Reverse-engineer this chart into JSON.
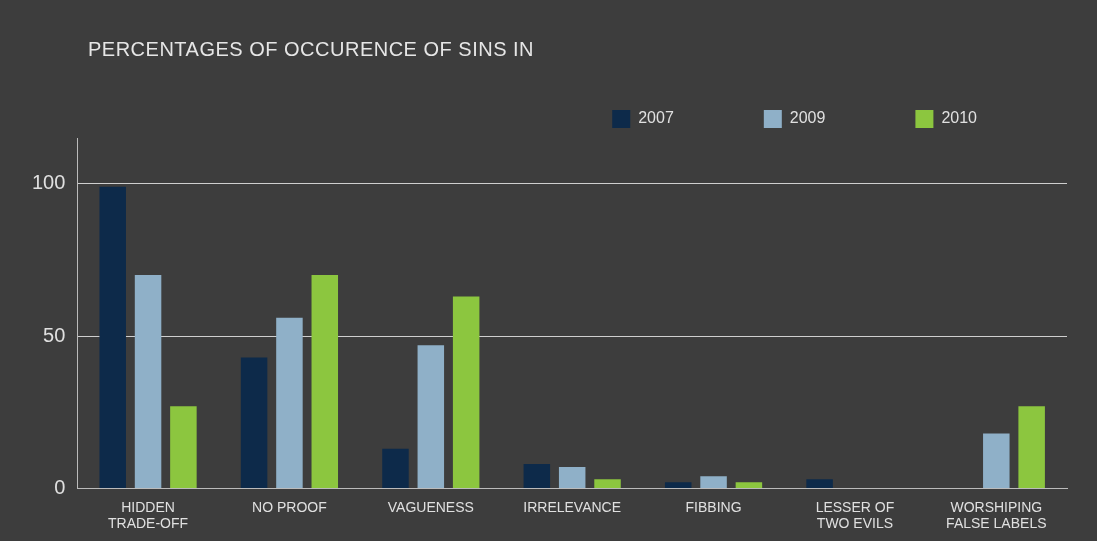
{
  "chart_data": {
    "type": "bar",
    "title": "PERCENTAGES OF OCCURENCE OF SINS IN",
    "categories": [
      "HIDDEN TRADE-OFF",
      "NO PROOF",
      "VAGUENESS",
      "IRRELEVANCE",
      "FIBBING",
      "LESSER OF TWO EVILS",
      "WORSHIPING FALSE LABELS"
    ],
    "series": [
      {
        "name": "2007",
        "color": "#0d2a4a",
        "values": [
          99,
          43,
          13,
          8,
          2,
          3,
          null
        ]
      },
      {
        "name": "2009",
        "color": "#8fb0c8",
        "values": [
          70,
          56,
          47,
          7,
          4,
          null,
          18
        ]
      },
      {
        "name": "2010",
        "color": "#8cc63f",
        "values": [
          27,
          70,
          63,
          3,
          2,
          null,
          27
        ]
      }
    ],
    "ylim": [
      0,
      115
    ],
    "yticks": [
      0,
      50,
      100
    ],
    "grid": "y",
    "legend": "top"
  }
}
